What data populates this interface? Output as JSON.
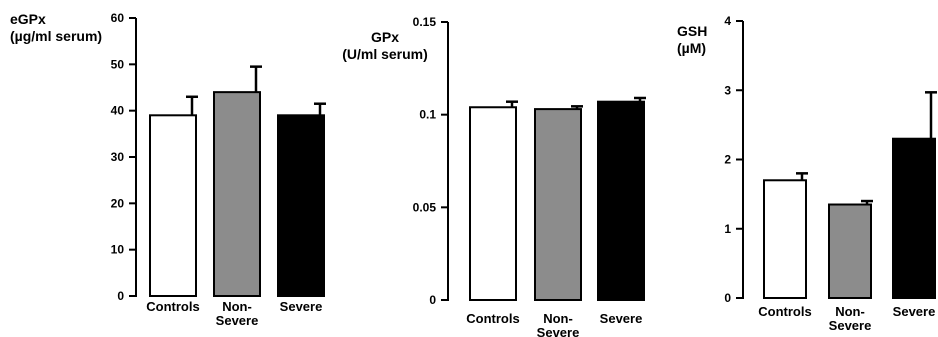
{
  "chart_data": [
    {
      "type": "bar",
      "title": "",
      "ylabel": [
        "eGPx",
        "(µg/ml serum)"
      ],
      "xlabel": "",
      "categories": [
        [
          "Controls"
        ],
        [
          "Non-",
          "Severe"
        ],
        [
          "Severe"
        ]
      ],
      "values": [
        39,
        44,
        39
      ],
      "errors": [
        4,
        5.5,
        2.5
      ],
      "ylim": [
        0,
        60
      ],
      "yticks": [
        0,
        10,
        20,
        30,
        40,
        50,
        60
      ],
      "ytick_labels": [
        "0",
        "10",
        "20",
        "30",
        "40",
        "50",
        "60"
      ],
      "bar_colors": [
        "#ffffff",
        "#8c8c8c",
        "#000000"
      ],
      "grid": false,
      "legend": "none"
    },
    {
      "type": "bar",
      "title": "",
      "ylabel": [
        "GPx",
        "(U/ml serum)"
      ],
      "xlabel": "",
      "categories": [
        [
          "Controls"
        ],
        [
          "Non-",
          "Severe"
        ],
        [
          "Severe"
        ]
      ],
      "values": [
        0.104,
        0.103,
        0.107
      ],
      "errors": [
        0.003,
        0.0015,
        0.002
      ],
      "ylim": [
        0,
        0.15
      ],
      "yticks": [
        0,
        0.05,
        0.1,
        0.15
      ],
      "ytick_labels": [
        "0",
        "0.05",
        "0.1",
        "0.15"
      ],
      "bar_colors": [
        "#ffffff",
        "#8c8c8c",
        "#000000"
      ],
      "grid": false,
      "legend": "none"
    },
    {
      "type": "bar",
      "title": "",
      "ylabel": [
        "GSH",
        "(µM)"
      ],
      "xlabel": "",
      "categories": [
        [
          "Controls"
        ],
        [
          "Non-",
          "Severe"
        ],
        [
          "Severe"
        ]
      ],
      "values": [
        1.7,
        1.35,
        2.3
      ],
      "errors": [
        0.1,
        0.05,
        0.67
      ],
      "ylim": [
        0,
        4
      ],
      "yticks": [
        0,
        1,
        2,
        3,
        4
      ],
      "ytick_labels": [
        "0",
        "1",
        "2",
        "3",
        "4"
      ],
      "bar_colors": [
        "#ffffff",
        "#8c8c8c",
        "#000000"
      ],
      "grid": false,
      "legend": "none"
    }
  ]
}
